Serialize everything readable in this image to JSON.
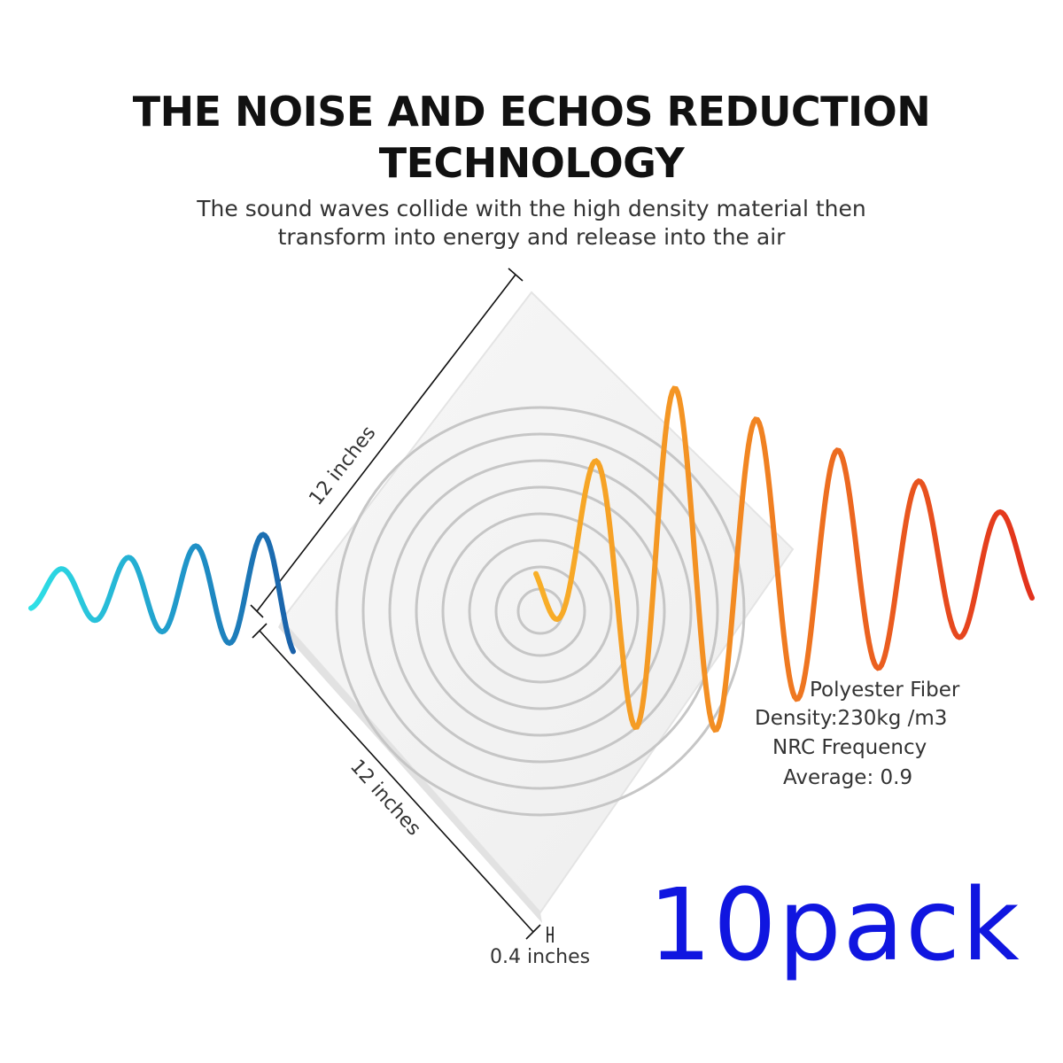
{
  "heading": {
    "line1": "THE NOISE AND ECHOS REDUCTION",
    "line2": "TECHNOLOGY"
  },
  "subheading": {
    "line1": "The sound waves collide with the high density material then",
    "line2": "transform into energy and release into the air"
  },
  "dimensions": {
    "top_edge": "12 inches",
    "bottom_edge": "12 inches",
    "thickness": "0.4 inches"
  },
  "specs": {
    "material": "Polyester Fiber",
    "density": "Density:230kg /m3",
    "nrc_line1": "NRC Frequency",
    "nrc_line2": "Average: 0.9"
  },
  "pack": "10pack",
  "colors": {
    "incoming_wave_start": "#2ed6e0",
    "incoming_wave_end": "#1a6fb0",
    "outgoing_wave_start": "#f7a42a",
    "outgoing_wave_end": "#e63a1e",
    "pack_text": "#1016e0",
    "rings": "#c4c4c4"
  }
}
